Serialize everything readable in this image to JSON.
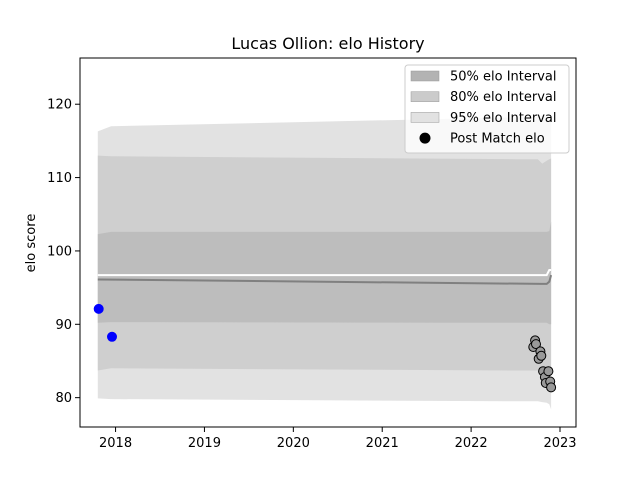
{
  "chart_data": {
    "type": "area",
    "title": "Lucas Ollion: elo History",
    "xlabel": "",
    "ylabel": "elo score",
    "xlim": [
      2017.6,
      2023.18
    ],
    "ylim": [
      76,
      126.3
    ],
    "x_ticks": [
      {
        "value": 2018,
        "label": "2018"
      },
      {
        "value": 2019,
        "label": "2019"
      },
      {
        "value": 2020,
        "label": "2020"
      },
      {
        "value": 2021,
        "label": "2021"
      },
      {
        "value": 2022,
        "label": "2022"
      },
      {
        "value": 2023,
        "label": "2023"
      }
    ],
    "y_ticks": [
      {
        "value": 80,
        "label": "80"
      },
      {
        "value": 90,
        "label": "90"
      },
      {
        "value": 100,
        "label": "100"
      },
      {
        "value": 110,
        "label": "110"
      },
      {
        "value": 120,
        "label": "120"
      }
    ],
    "grid": false,
    "legend_position": "top-right",
    "legend": [
      {
        "label": "50% elo Interval",
        "kind": "patch",
        "color": "#b3b3b3"
      },
      {
        "label": "80% elo Interval",
        "kind": "patch",
        "color": "#cbcbcb"
      },
      {
        "label": "95% elo Interval",
        "kind": "patch",
        "color": "#e2e2e2"
      },
      {
        "label": "Post Match elo",
        "kind": "marker",
        "color": "#000000"
      }
    ],
    "bands": [
      {
        "name": "95% elo Interval",
        "color": "#e2e2e2",
        "x": [
          2017.8,
          2017.95,
          2022.5,
          2022.75,
          2022.8,
          2022.85,
          2022.88,
          2022.9,
          2022.9
        ],
        "upper": [
          116.3,
          117.0,
          118.2,
          118.3,
          118.5,
          118.5,
          118.8,
          118.5,
          118.5
        ],
        "lower": [
          79.9,
          79.8,
          79.5,
          79.5,
          79.4,
          79.3,
          79.1,
          78.4,
          78.3
        ]
      },
      {
        "name": "80% elo Interval",
        "color": "#cfcfcf",
        "x": [
          2017.8,
          2017.95,
          2022.5,
          2022.75,
          2022.8,
          2022.85,
          2022.88,
          2022.9,
          2022.9
        ],
        "upper": [
          113.0,
          112.9,
          112.5,
          112.5,
          111.9,
          112.3,
          112.5,
          112.6,
          112.6
        ],
        "lower": [
          83.7,
          84.0,
          83.7,
          83.7,
          83.7,
          83.7,
          83.6,
          83.5,
          83.5
        ]
      },
      {
        "name": "50% elo Interval",
        "color": "#bdbdbd",
        "x": [
          2017.8,
          2017.95,
          2022.5,
          2022.75,
          2022.8,
          2022.85,
          2022.88,
          2022.9,
          2022.9
        ],
        "upper": [
          102.3,
          102.6,
          102.6,
          102.6,
          102.6,
          102.6,
          102.7,
          104.0,
          104.0
        ],
        "lower": [
          90.2,
          90.3,
          90.2,
          90.2,
          90.2,
          90.2,
          90.0,
          90.0,
          90.0
        ]
      }
    ],
    "series": [
      {
        "type": "line",
        "color": "#ffffff",
        "x": [
          2017.8,
          2022.85,
          2022.88,
          2022.9
        ],
        "y": [
          96.7,
          96.7,
          97.4,
          97.4
        ]
      },
      {
        "type": "line",
        "color": "#808080",
        "x": [
          2017.8,
          2022.8,
          2022.85,
          2022.88,
          2022.9
        ],
        "y": [
          96.1,
          95.5,
          95.5,
          95.8,
          96.7
        ]
      },
      {
        "type": "scatter",
        "color": "#0000ff",
        "edge": "#0000ff",
        "x": [
          2017.81,
          2017.96
        ],
        "y": [
          92.1,
          88.3
        ]
      },
      {
        "name": "Post Match elo",
        "type": "scatter",
        "color": "#999999",
        "edge": "#000000",
        "x": [
          2022.7,
          2022.72,
          2022.73,
          2022.76,
          2022.78,
          2022.79,
          2022.81,
          2022.83,
          2022.84,
          2022.87,
          2022.89,
          2022.9
        ],
        "y": [
          86.9,
          87.8,
          87.3,
          85.3,
          86.3,
          85.7,
          83.6,
          82.8,
          82.0,
          83.6,
          82.2,
          81.4
        ]
      }
    ]
  }
}
